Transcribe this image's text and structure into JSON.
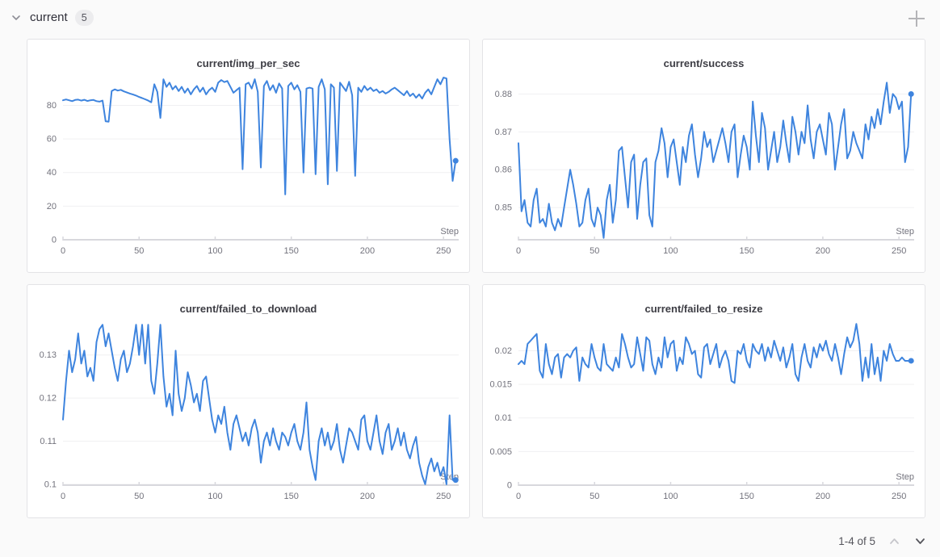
{
  "header": {
    "section_label": "current",
    "badge_count": "5",
    "collapse_icon": "chevron-down-icon",
    "add_icon": "plus-icon"
  },
  "pagination": {
    "label": "1-4 of 5",
    "prev_icon": "chevron-up-icon",
    "next_icon": "chevron-down-icon"
  },
  "colors": {
    "line": "#3e84de",
    "page_bg": "#fafafa",
    "card_bg": "#ffffff",
    "card_border": "#e3e3e6",
    "grid": "#f0f0f2",
    "axis": "#d8d8dd",
    "tick_text": "#73737d",
    "title_text": "#3d3d44"
  },
  "chart_data": [
    {
      "type": "line",
      "title": "current/img_per_sec",
      "xlabel": "Step",
      "x_ticks": [
        0,
        50,
        100,
        150,
        200,
        250
      ],
      "x_domain": [
        0,
        260
      ],
      "x_start": 0,
      "x_step": 2,
      "y_ticks": [
        0,
        20,
        40,
        60,
        80
      ],
      "y_min": 0,
      "y_max": 98,
      "grid": true,
      "end_dot": true,
      "values": [
        83,
        83.5,
        83,
        82.5,
        83.2,
        83.4,
        82.8,
        83.3,
        82.6,
        83,
        83.2,
        82.5,
        82.2,
        82.8,
        70.5,
        70.3,
        88.5,
        89.5,
        88.8,
        89.2,
        88.3,
        87.6,
        87,
        86.4,
        85.8,
        85,
        84.3,
        83.6,
        82.8,
        81.8,
        92.5,
        88,
        72.5,
        95.5,
        91,
        93.5,
        89.5,
        91.5,
        88.5,
        91,
        87.5,
        90,
        86.5,
        89.5,
        91.5,
        88,
        90.5,
        86.5,
        89,
        90.5,
        88,
        93.5,
        95,
        93.8,
        94.5,
        91,
        87.5,
        89,
        90.5,
        42,
        92.5,
        93.5,
        90,
        95.5,
        88,
        43,
        91.5,
        94.5,
        89,
        92,
        87.5,
        93,
        90,
        27,
        91.5,
        93.5,
        89.5,
        92,
        88,
        40,
        90,
        90.5,
        90,
        39,
        91,
        95.5,
        89.5,
        33,
        92.5,
        90.5,
        41,
        93.5,
        91,
        88.5,
        94,
        86,
        38,
        90.5,
        88,
        91.5,
        89,
        90.5,
        88.5,
        89.5,
        87.5,
        88.5,
        87,
        88,
        89.5,
        90.5,
        89,
        87.5,
        86,
        88.5,
        85.5,
        87,
        84.5,
        86.5,
        84,
        87.5,
        89.5,
        86.5,
        91,
        95.5,
        92.5,
        96.5,
        96,
        60,
        35,
        47
      ]
    },
    {
      "type": "line",
      "title": "current/success",
      "xlabel": "Step",
      "x_ticks": [
        0,
        50,
        100,
        150,
        200,
        250
      ],
      "x_domain": [
        0,
        260
      ],
      "x_start": 0,
      "x_step": 2,
      "y_ticks": [
        0.85,
        0.86,
        0.87,
        0.88
      ],
      "y_min": 0.8415,
      "y_max": 0.885,
      "grid": true,
      "end_dot": true,
      "values": [
        0.867,
        0.849,
        0.852,
        0.846,
        0.845,
        0.852,
        0.855,
        0.846,
        0.847,
        0.845,
        0.851,
        0.846,
        0.844,
        0.847,
        0.845,
        0.85,
        0.855,
        0.86,
        0.856,
        0.851,
        0.845,
        0.846,
        0.852,
        0.855,
        0.847,
        0.845,
        0.85,
        0.848,
        0.842,
        0.852,
        0.856,
        0.846,
        0.852,
        0.865,
        0.866,
        0.858,
        0.85,
        0.862,
        0.864,
        0.847,
        0.856,
        0.862,
        0.863,
        0.848,
        0.845,
        0.862,
        0.865,
        0.871,
        0.867,
        0.858,
        0.866,
        0.868,
        0.862,
        0.856,
        0.866,
        0.862,
        0.869,
        0.872,
        0.864,
        0.858,
        0.863,
        0.87,
        0.866,
        0.868,
        0.862,
        0.865,
        0.868,
        0.871,
        0.867,
        0.862,
        0.87,
        0.872,
        0.858,
        0.864,
        0.869,
        0.866,
        0.86,
        0.878,
        0.869,
        0.862,
        0.875,
        0.871,
        0.86,
        0.865,
        0.87,
        0.862,
        0.866,
        0.873,
        0.867,
        0.862,
        0.874,
        0.87,
        0.864,
        0.87,
        0.867,
        0.877,
        0.868,
        0.863,
        0.87,
        0.872,
        0.868,
        0.864,
        0.875,
        0.872,
        0.86,
        0.866,
        0.872,
        0.876,
        0.863,
        0.865,
        0.87,
        0.867,
        0.865,
        0.863,
        0.872,
        0.868,
        0.874,
        0.871,
        0.876,
        0.872,
        0.878,
        0.883,
        0.875,
        0.88,
        0.879,
        0.876,
        0.878,
        0.862,
        0.866,
        0.88
      ]
    },
    {
      "type": "line",
      "title": "current/failed_to_download",
      "xlabel": "Step",
      "x_ticks": [
        0,
        50,
        100,
        150,
        200,
        250
      ],
      "x_domain": [
        0,
        260
      ],
      "x_start": 0,
      "x_step": 2,
      "y_ticks": [
        0.1,
        0.11,
        0.12,
        0.13
      ],
      "y_min": 0.0998,
      "y_max": 0.138,
      "grid": true,
      "end_dot": true,
      "values": [
        0.115,
        0.124,
        0.131,
        0.126,
        0.129,
        0.135,
        0.128,
        0.131,
        0.125,
        0.127,
        0.124,
        0.133,
        0.136,
        0.137,
        0.132,
        0.135,
        0.131,
        0.127,
        0.124,
        0.129,
        0.131,
        0.126,
        0.128,
        0.132,
        0.137,
        0.13,
        0.137,
        0.128,
        0.137,
        0.124,
        0.121,
        0.128,
        0.137,
        0.125,
        0.118,
        0.121,
        0.116,
        0.131,
        0.121,
        0.117,
        0.12,
        0.126,
        0.123,
        0.119,
        0.121,
        0.117,
        0.124,
        0.125,
        0.12,
        0.115,
        0.112,
        0.116,
        0.114,
        0.118,
        0.112,
        0.108,
        0.114,
        0.116,
        0.113,
        0.11,
        0.112,
        0.109,
        0.113,
        0.115,
        0.112,
        0.105,
        0.11,
        0.112,
        0.109,
        0.113,
        0.11,
        0.108,
        0.112,
        0.111,
        0.109,
        0.112,
        0.114,
        0.11,
        0.108,
        0.112,
        0.119,
        0.108,
        0.104,
        0.101,
        0.11,
        0.113,
        0.109,
        0.112,
        0.108,
        0.11,
        0.114,
        0.108,
        0.105,
        0.109,
        0.113,
        0.112,
        0.11,
        0.108,
        0.115,
        0.116,
        0.11,
        0.108,
        0.112,
        0.116,
        0.11,
        0.107,
        0.112,
        0.114,
        0.108,
        0.11,
        0.113,
        0.109,
        0.112,
        0.108,
        0.106,
        0.109,
        0.111,
        0.105,
        0.102,
        0.1,
        0.104,
        0.106,
        0.103,
        0.105,
        0.102,
        0.104,
        0.1,
        0.116,
        0.101,
        0.101
      ]
    },
    {
      "type": "line",
      "title": "current/failed_to_resize",
      "xlabel": "Step",
      "x_ticks": [
        0,
        50,
        100,
        150,
        200,
        250
      ],
      "x_domain": [
        0,
        260
      ],
      "x_start": 0,
      "x_step": 2,
      "y_ticks": [
        0,
        0.005,
        0.01,
        0.015,
        0.02
      ],
      "y_min": 0,
      "y_max": 0.0245,
      "grid": true,
      "end_dot": true,
      "values": [
        0.018,
        0.0185,
        0.018,
        0.021,
        0.0215,
        0.022,
        0.0225,
        0.017,
        0.016,
        0.021,
        0.018,
        0.0165,
        0.019,
        0.0195,
        0.016,
        0.019,
        0.0195,
        0.019,
        0.02,
        0.0205,
        0.0155,
        0.019,
        0.018,
        0.0175,
        0.021,
        0.019,
        0.0175,
        0.017,
        0.021,
        0.018,
        0.0175,
        0.017,
        0.019,
        0.0175,
        0.0225,
        0.021,
        0.019,
        0.0175,
        0.018,
        0.022,
        0.0195,
        0.017,
        0.022,
        0.0215,
        0.018,
        0.0165,
        0.019,
        0.0175,
        0.022,
        0.019,
        0.021,
        0.0215,
        0.017,
        0.019,
        0.018,
        0.022,
        0.021,
        0.0195,
        0.02,
        0.0165,
        0.016,
        0.0205,
        0.021,
        0.018,
        0.0195,
        0.021,
        0.0175,
        0.019,
        0.02,
        0.0185,
        0.0155,
        0.0152,
        0.02,
        0.0195,
        0.021,
        0.0185,
        0.0175,
        0.021,
        0.02,
        0.0195,
        0.021,
        0.0185,
        0.0205,
        0.019,
        0.0215,
        0.02,
        0.0185,
        0.0205,
        0.0175,
        0.019,
        0.021,
        0.0165,
        0.0155,
        0.019,
        0.021,
        0.0185,
        0.0175,
        0.0205,
        0.019,
        0.021,
        0.02,
        0.0215,
        0.0195,
        0.0185,
        0.021,
        0.019,
        0.0165,
        0.0195,
        0.022,
        0.0205,
        0.0215,
        0.024,
        0.021,
        0.0155,
        0.019,
        0.016,
        0.021,
        0.0165,
        0.019,
        0.0155,
        0.02,
        0.0185,
        0.021,
        0.0195,
        0.0185,
        0.0185,
        0.019,
        0.0185,
        0.0185,
        0.0185
      ]
    }
  ]
}
